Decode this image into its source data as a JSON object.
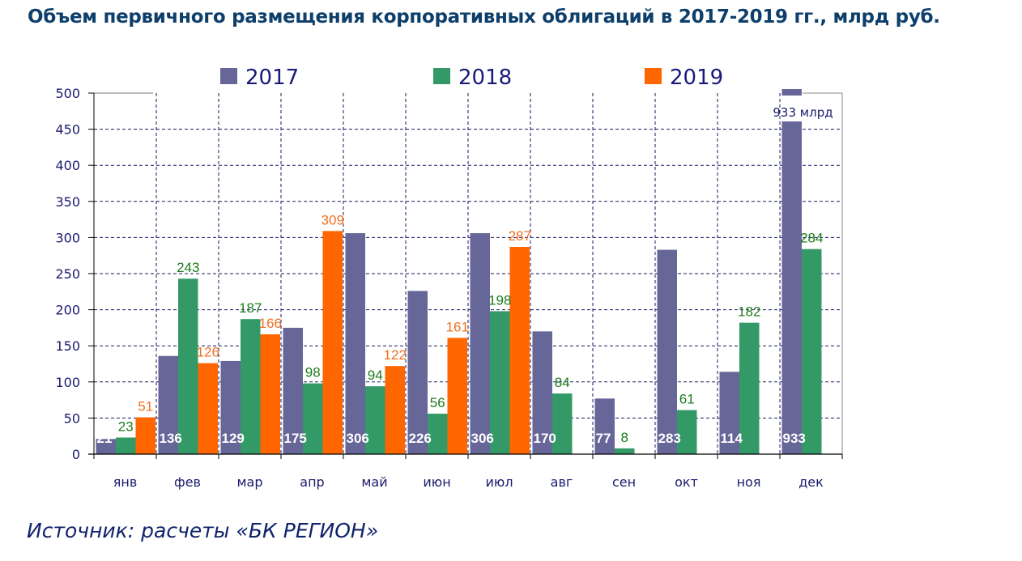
{
  "title": "Объем первичного размещения корпоративных облигаций в 2017-2019 гг., млрд руб.",
  "source": "Источник: расчеты «БК РЕГИОН»",
  "chart_data": {
    "type": "bar",
    "title": "Объем первичного размещения корпоративных облигаций в 2017-2019 гг., млрд руб.",
    "xlabel": "",
    "ylabel": "",
    "ylim": [
      0,
      500
    ],
    "yticks": [
      0,
      50,
      100,
      150,
      200,
      250,
      300,
      350,
      400,
      450,
      500
    ],
    "grid": true,
    "legend_position": "top",
    "categories": [
      "янв",
      "фев",
      "мар",
      "апр",
      "май",
      "июн",
      "июл",
      "авг",
      "сен",
      "окт",
      "ноя",
      "дек"
    ],
    "series": [
      {
        "name": "2017",
        "color": "#676699",
        "label_color": "#ffffff",
        "label_position": "inside-bottom",
        "values": [
          21,
          136,
          129,
          175,
          306,
          226,
          306,
          170,
          77,
          283,
          114,
          933
        ]
      },
      {
        "name": "2018",
        "color": "#339966",
        "label_color": "#1e7b1e",
        "label_position": "above",
        "values": [
          23,
          243,
          187,
          98,
          94,
          56,
          198,
          84,
          8,
          61,
          182,
          284
        ]
      },
      {
        "name": "2019",
        "color": "#ff6600",
        "label_color": "#f07020",
        "label_position": "above",
        "values": [
          51,
          126,
          166,
          309,
          122,
          161,
          287,
          null,
          null,
          null,
          null,
          null
        ]
      }
    ],
    "annotations": [
      {
        "text": "933 млрд",
        "category": "дек",
        "series": "2017",
        "note": "bar truncated at axis max (axis break)"
      }
    ]
  }
}
